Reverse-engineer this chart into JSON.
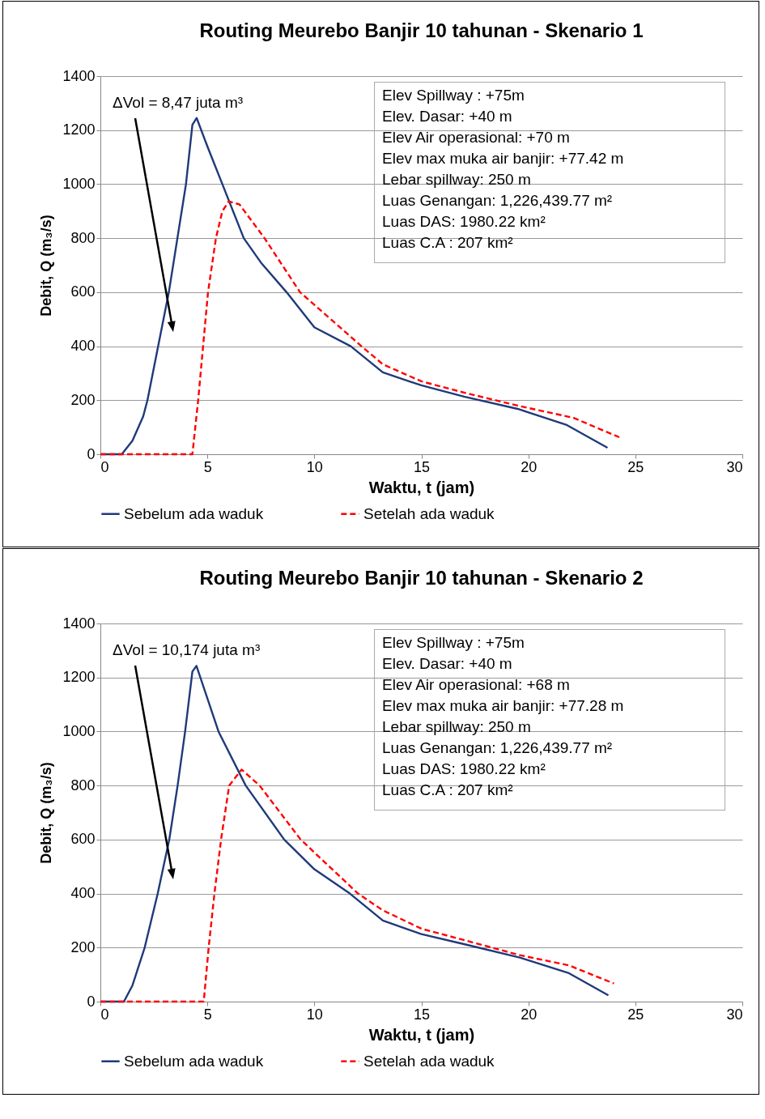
{
  "chart_data": [
    {
      "type": "line",
      "title": "Routing Meurebo Banjir 10 tahunan - Skenario 1",
      "xlabel": "Waktu, t (jam)",
      "ylabel": "Debit, Q (m₃/s)",
      "xlim": [
        0,
        30
      ],
      "ylim": [
        0,
        1400
      ],
      "xticks": [
        0,
        5,
        10,
        15,
        20,
        25,
        30
      ],
      "yticks": [
        0,
        200,
        400,
        600,
        800,
        1000,
        1200,
        1400
      ],
      "grid": "y",
      "legend": "bottom",
      "annotations": [
        "ΔVol = 8,47 juta m³",
        "Elev Spillway : +75m",
        "Elev. Dasar: +40 m",
        "Elev Air operasional: +70 m",
        "Elev max muka air banjir: +77.42 m",
        "Lebar spillway: 250 m",
        "Luas Genangan: 1,226,439.77 m²",
        "Luas DAS: 1980.22 km²",
        "Luas C.A : 207 km²"
      ],
      "series": [
        {
          "name": "Sebelum ada waduk",
          "color": "#1f3a7a",
          "line_style": "solid",
          "x": [
            0,
            1.0,
            1.5,
            2.0,
            2.2,
            2.7,
            3.2,
            3.6,
            4.0,
            4.3,
            4.5,
            5.0,
            5.7,
            6.7,
            7.5,
            8.7,
            10,
            11.7,
            13.2,
            15,
            17,
            19.5,
            21.8,
            23.7
          ],
          "values": [
            0,
            0,
            50,
            140,
            200,
            400,
            600,
            800,
            1000,
            1220,
            1245,
            1140,
            1000,
            800,
            710,
            600,
            470,
            400,
            303,
            255,
            213,
            168,
            108,
            24
          ]
        },
        {
          "name": "Setelah ada waduk",
          "color": "#ff0000",
          "line_style": "dashed",
          "x": [
            0,
            4.3,
            4.57,
            4.8,
            5.03,
            5.4,
            5.7,
            6.0,
            6.5,
            7.67,
            9.33,
            12.2,
            13.2,
            15,
            17,
            19.5,
            22.1,
            24.25
          ],
          "values": [
            0,
            0,
            200,
            400,
            600,
            800,
            900,
            936,
            925,
            800,
            600,
            400,
            333,
            270,
            228,
            180,
            135,
            63
          ]
        }
      ]
    },
    {
      "type": "line",
      "title": "Routing Meurebo Banjir 10 tahunan - Skenario 2",
      "xlabel": "Waktu, t (jam)",
      "ylabel": "Debit, Q (m₃/s)",
      "xlim": [
        0,
        30
      ],
      "ylim": [
        0,
        1400
      ],
      "xticks": [
        0,
        5,
        10,
        15,
        20,
        25,
        30
      ],
      "yticks": [
        0,
        200,
        400,
        600,
        800,
        1000,
        1200,
        1400
      ],
      "grid": "y",
      "legend": "bottom",
      "annotations": [
        "ΔVol = 10,174 juta m³",
        "Elev Spillway : +75m",
        "Elev. Dasar: +40 m",
        "Elev Air operasional: +68 m",
        "Elev max muka air banjir: +77.28 m",
        "Lebar spillway: 250 m",
        "Luas Genangan: 1,226,439.77 m²",
        "Luas DAS: 1980.22 km²",
        "Luas C.A : 207 km²"
      ],
      "series": [
        {
          "name": "Sebelum ada waduk",
          "color": "#1f3a7a",
          "line_style": "solid",
          "x": [
            0,
            1.1,
            1.5,
            2.07,
            2.68,
            3.22,
            3.61,
            3.96,
            4.3,
            4.49,
            5.52,
            6.79,
            8.59,
            10,
            11.66,
            13.2,
            15,
            17.03,
            19.6,
            21.9,
            23.74
          ],
          "values": [
            0,
            0,
            60,
            200,
            400,
            600,
            800,
            1000,
            1222,
            1243,
            1000,
            800,
            600,
            490,
            400,
            300,
            250,
            212,
            163,
            105,
            23
          ]
        },
        {
          "name": "Setelah ada waduk",
          "color": "#ff0000",
          "line_style": "dashed",
          "x": [
            0,
            4.83,
            5.06,
            5.33,
            5.64,
            6.02,
            6.6,
            7.44,
            9.36,
            12.04,
            13.2,
            15,
            17.03,
            19.6,
            21.9,
            24.0
          ],
          "values": [
            0,
            0,
            200,
            400,
            600,
            800,
            859,
            800,
            600,
            400,
            338,
            270,
            227,
            172,
            134,
            67
          ]
        }
      ]
    }
  ]
}
